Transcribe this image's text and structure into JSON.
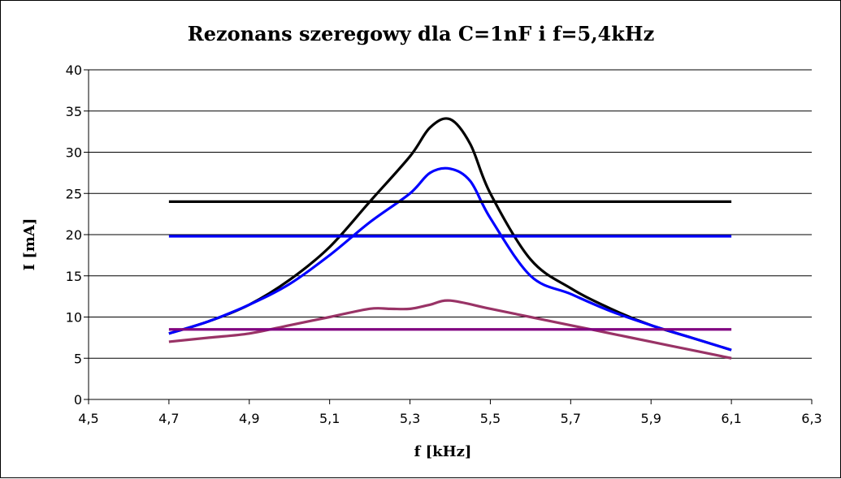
{
  "chart_data": {
    "type": "line",
    "title": "Rezonans szeregowy dla C=1nF i f=5,4kHz",
    "xlabel": "f [kHz]",
    "ylabel": "I [mA]",
    "xlim": [
      4.5,
      6.3
    ],
    "ylim": [
      0,
      40
    ],
    "x_ticks": [
      4.5,
      4.7,
      4.9,
      5.1,
      5.3,
      5.5,
      5.7,
      5.9,
      6.1,
      6.3
    ],
    "x_tick_labels": [
      "4,5",
      "4,7",
      "4,9",
      "5,1",
      "5,3",
      "5,5",
      "5,7",
      "5,9",
      "6,1",
      "6,3"
    ],
    "y_ticks": [
      0,
      5,
      10,
      15,
      20,
      25,
      30,
      35,
      40
    ],
    "y_tick_labels": [
      "0",
      "5",
      "10",
      "15",
      "20",
      "25",
      "30",
      "35",
      "40"
    ],
    "grid": "horizontal",
    "legend": "none",
    "series": [
      {
        "color": "#000000",
        "x": [
          4.7,
          4.8,
          4.9,
          5.0,
          5.1,
          5.2,
          5.3,
          5.35,
          5.4,
          5.45,
          5.5,
          5.6,
          5.7,
          5.8,
          5.9,
          6.0,
          6.1
        ],
        "y": [
          8.0,
          9.5,
          11.5,
          14.5,
          18.5,
          24.0,
          29.5,
          33.0,
          34.0,
          31.0,
          25.0,
          17.0,
          13.5,
          11.0,
          9.0,
          7.5,
          6.0
        ]
      },
      {
        "color": "#0000ff",
        "x": [
          4.7,
          4.8,
          4.9,
          5.0,
          5.1,
          5.2,
          5.3,
          5.35,
          5.4,
          5.45,
          5.5,
          5.6,
          5.7,
          5.8,
          5.9,
          6.0,
          6.1
        ],
        "y": [
          8.0,
          9.5,
          11.5,
          14.0,
          17.5,
          21.5,
          25.0,
          27.5,
          28.0,
          26.5,
          22.0,
          15.0,
          12.8,
          10.7,
          9.0,
          7.5,
          6.0
        ]
      },
      {
        "color": "#993366",
        "x": [
          4.7,
          4.8,
          4.9,
          5.0,
          5.1,
          5.2,
          5.25,
          5.3,
          5.35,
          5.4,
          5.5,
          5.6,
          5.7,
          5.8,
          5.9,
          6.0,
          6.1
        ],
        "y": [
          7.0,
          7.5,
          8.0,
          9.0,
          10.0,
          11.0,
          11.0,
          11.0,
          11.5,
          12.0,
          11.0,
          10.0,
          9.0,
          8.0,
          7.0,
          6.0,
          5.0
        ]
      },
      {
        "color": "#000000",
        "x": [
          4.7,
          6.1
        ],
        "y": [
          24.0,
          24.0
        ]
      },
      {
        "color": "#0000ff",
        "x": [
          4.7,
          6.1
        ],
        "y": [
          19.8,
          19.8
        ]
      },
      {
        "color": "#800080",
        "x": [
          4.7,
          6.1
        ],
        "y": [
          8.5,
          8.5
        ]
      }
    ]
  }
}
